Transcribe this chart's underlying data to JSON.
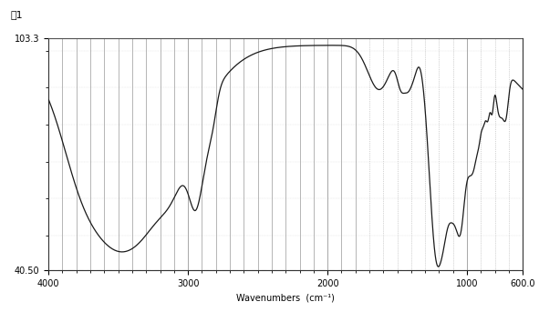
{
  "title": "図1",
  "xlabel": "Wavenumbers  (cm⁻¹)",
  "ylabel": "",
  "xmin": 600.0,
  "xmax": 4000,
  "ymin": 40.5,
  "ymax": 103.3,
  "background_color": "#ffffff",
  "line_color": "#1a1a1a",
  "grid_color_solid": "#999999",
  "grid_color_dot": "#aaaaaa"
}
